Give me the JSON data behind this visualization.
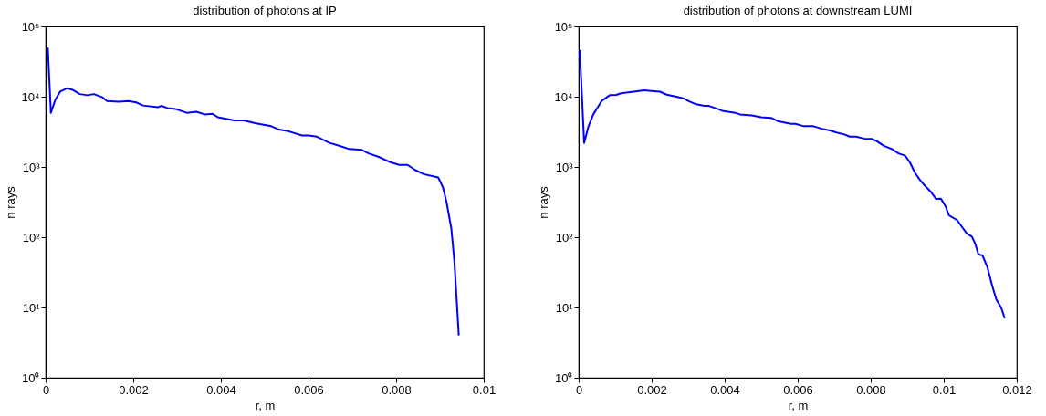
{
  "chart_data": [
    {
      "type": "line",
      "title": "distribution of photons at IP",
      "xlabel": "r, m",
      "ylabel": "n rays",
      "log": "y",
      "grid": false,
      "xlim": [
        0,
        0.01
      ],
      "xticks": [
        0,
        0.002,
        0.004,
        0.006,
        0.008,
        0.01
      ],
      "ylim": [
        1,
        100000
      ],
      "yticks": [
        {
          "value": 1,
          "label": "10⁰"
        },
        {
          "value": 10,
          "label": "10¹"
        },
        {
          "value": 100,
          "label": "10²"
        },
        {
          "value": 1000,
          "label": "10³"
        },
        {
          "value": 10000,
          "label": "10⁴"
        },
        {
          "value": 100000,
          "label": "10⁵"
        }
      ],
      "series": [
        {
          "color": "#0000ff",
          "x": [
            5e-05,
            0.00012,
            0.00022,
            0.00033,
            0.0005,
            0.00063,
            0.00078,
            0.00096,
            0.0011,
            0.0013,
            0.0014,
            0.00167,
            0.00189,
            0.00207,
            0.00222,
            0.00256,
            0.00264,
            0.00278,
            0.00296,
            0.00322,
            0.00344,
            0.00363,
            0.00381,
            0.00393,
            0.0043,
            0.00452,
            0.00478,
            0.00515,
            0.00533,
            0.00556,
            0.00585,
            0.006,
            0.00619,
            0.00648,
            0.0067,
            0.00693,
            0.00722,
            0.00737,
            0.00759,
            0.00785,
            0.00807,
            0.00826,
            0.00844,
            0.00863,
            0.00896,
            0.00907,
            0.00915,
            0.00926,
            0.00933,
            0.00943
          ],
          "values": [
            50000,
            5900,
            9000,
            11800,
            13200,
            12400,
            10900,
            10500,
            10900,
            9800,
            8700,
            8500,
            8700,
            8300,
            7500,
            7100,
            7400,
            6900,
            6700,
            5900,
            6100,
            5600,
            5700,
            5100,
            4600,
            4600,
            4200,
            3800,
            3400,
            3200,
            2800,
            2800,
            2700,
            2200,
            2000,
            1800,
            1750,
            1560,
            1400,
            1180,
            1070,
            1070,
            900,
            790,
            710,
            510,
            316,
            133,
            45,
            4
          ]
        }
      ]
    },
    {
      "type": "line",
      "title": "distribution of photons at downstream LUMI",
      "xlabel": "r, m",
      "ylabel": "n rays",
      "log": "y",
      "grid": false,
      "xlim": [
        0,
        0.012
      ],
      "xticks": [
        0,
        0.002,
        0.004,
        0.006,
        0.008,
        0.01,
        0.012
      ],
      "ylim": [
        1,
        100000
      ],
      "yticks": [
        {
          "value": 1,
          "label": "10⁰"
        },
        {
          "value": 10,
          "label": "10¹"
        },
        {
          "value": 100,
          "label": "10²"
        },
        {
          "value": 1000,
          "label": "10³"
        },
        {
          "value": 10000,
          "label": "10⁴"
        },
        {
          "value": 100000,
          "label": "10⁵"
        }
      ],
      "series": [
        {
          "color": "#0000ff",
          "x": [
            3e-05,
            0.00015,
            0.00027,
            0.0004,
            0.00063,
            0.00085,
            0.00103,
            0.00116,
            0.00161,
            0.00179,
            0.00206,
            0.00223,
            0.00241,
            0.00268,
            0.00286,
            0.00304,
            0.00322,
            0.00344,
            0.00357,
            0.00384,
            0.00393,
            0.00429,
            0.00442,
            0.00474,
            0.005,
            0.00527,
            0.00545,
            0.00581,
            0.00594,
            0.00617,
            0.00643,
            0.00666,
            0.00688,
            0.00706,
            0.00728,
            0.00742,
            0.0076,
            0.00786,
            0.00804,
            0.00818,
            0.00836,
            0.00858,
            0.00876,
            0.00894,
            0.00907,
            0.00921,
            0.00934,
            0.00947,
            0.00965,
            0.00979,
            0.00992,
            0.01005,
            0.01014,
            0.01037,
            0.0105,
            0.01063,
            0.01077,
            0.01086,
            0.01095,
            0.01106,
            0.01119,
            0.01133,
            0.01144,
            0.01157,
            0.01167
          ],
          "values": [
            46000,
            2200,
            3800,
            5600,
            8700,
            10500,
            10600,
            11200,
            12000,
            12300,
            12000,
            11800,
            10700,
            10000,
            9500,
            8500,
            7800,
            7400,
            7400,
            6600,
            6300,
            5900,
            5600,
            5400,
            5100,
            5000,
            4500,
            4100,
            4100,
            3800,
            3800,
            3500,
            3300,
            3100,
            2900,
            2700,
            2700,
            2500,
            2500,
            2300,
            2000,
            1800,
            1560,
            1450,
            1170,
            830,
            660,
            550,
            440,
            350,
            355,
            275,
            205,
            174,
            140,
            113,
            102,
            81,
            57,
            55,
            38,
            20,
            13,
            10,
            7
          ]
        }
      ]
    }
  ]
}
